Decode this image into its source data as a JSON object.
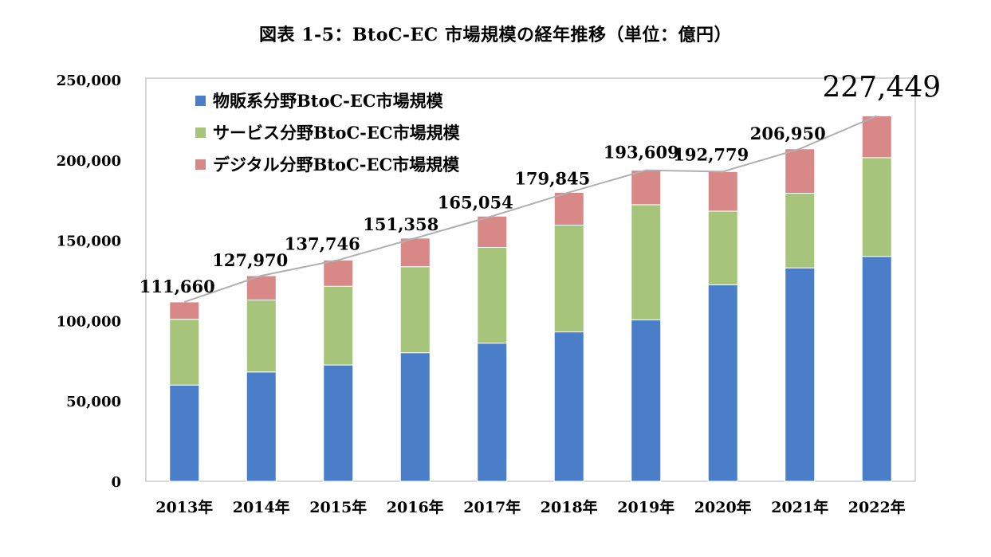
{
  "chart_data": {
    "type": "bar",
    "stacked": true,
    "title": "図表 1-5：BtoC-EC 市場規模の経年推移（単位：億円）",
    "categories": [
      "2013年",
      "2014年",
      "2015年",
      "2016年",
      "2017年",
      "2018年",
      "2019年",
      "2020年",
      "2021年",
      "2022年"
    ],
    "series": [
      {
        "name": "物販系分野BtoC-EC市場規模",
        "color": "#4a7ec9",
        "values": [
          59931,
          68043,
          72398,
          80043,
          86008,
          92992,
          100515,
          122333,
          132865,
          139997
        ]
      },
      {
        "name": "サービス分野BtoC-EC市場規模",
        "color": "#a6c47a",
        "values": [
          40938,
          44816,
          49014,
          53532,
          59568,
          66471,
          71672,
          45832,
          46424,
          61477
        ]
      },
      {
        "name": "デジタル分野BtoC-EC市場規模",
        "color": "#d98888",
        "values": [
          10791,
          15111,
          16334,
          17782,
          19478,
          20382,
          21422,
          24614,
          27661,
          25974
        ]
      }
    ],
    "totals": [
      111660,
      127970,
      137746,
      151358,
      165054,
      179845,
      193609,
      192779,
      206950,
      227449
    ],
    "total_labels": [
      "111,660",
      "127,970",
      "137,746",
      "151,358",
      "165,054",
      "179,845",
      "193,609",
      "192,779",
      "206,950",
      "227,449"
    ],
    "total_line_color": "#b0b0b0",
    "ylim": [
      0,
      250000
    ],
    "yticks": [
      0,
      50000,
      100000,
      150000,
      200000,
      250000
    ],
    "ytick_labels": [
      "0",
      "50,000",
      "100,000",
      "150,000",
      "200,000",
      "250,000"
    ],
    "xlabel": "",
    "ylabel": "",
    "grid": false,
    "legend_position": "top-left",
    "plot_border_color": "#bfbfbf"
  }
}
